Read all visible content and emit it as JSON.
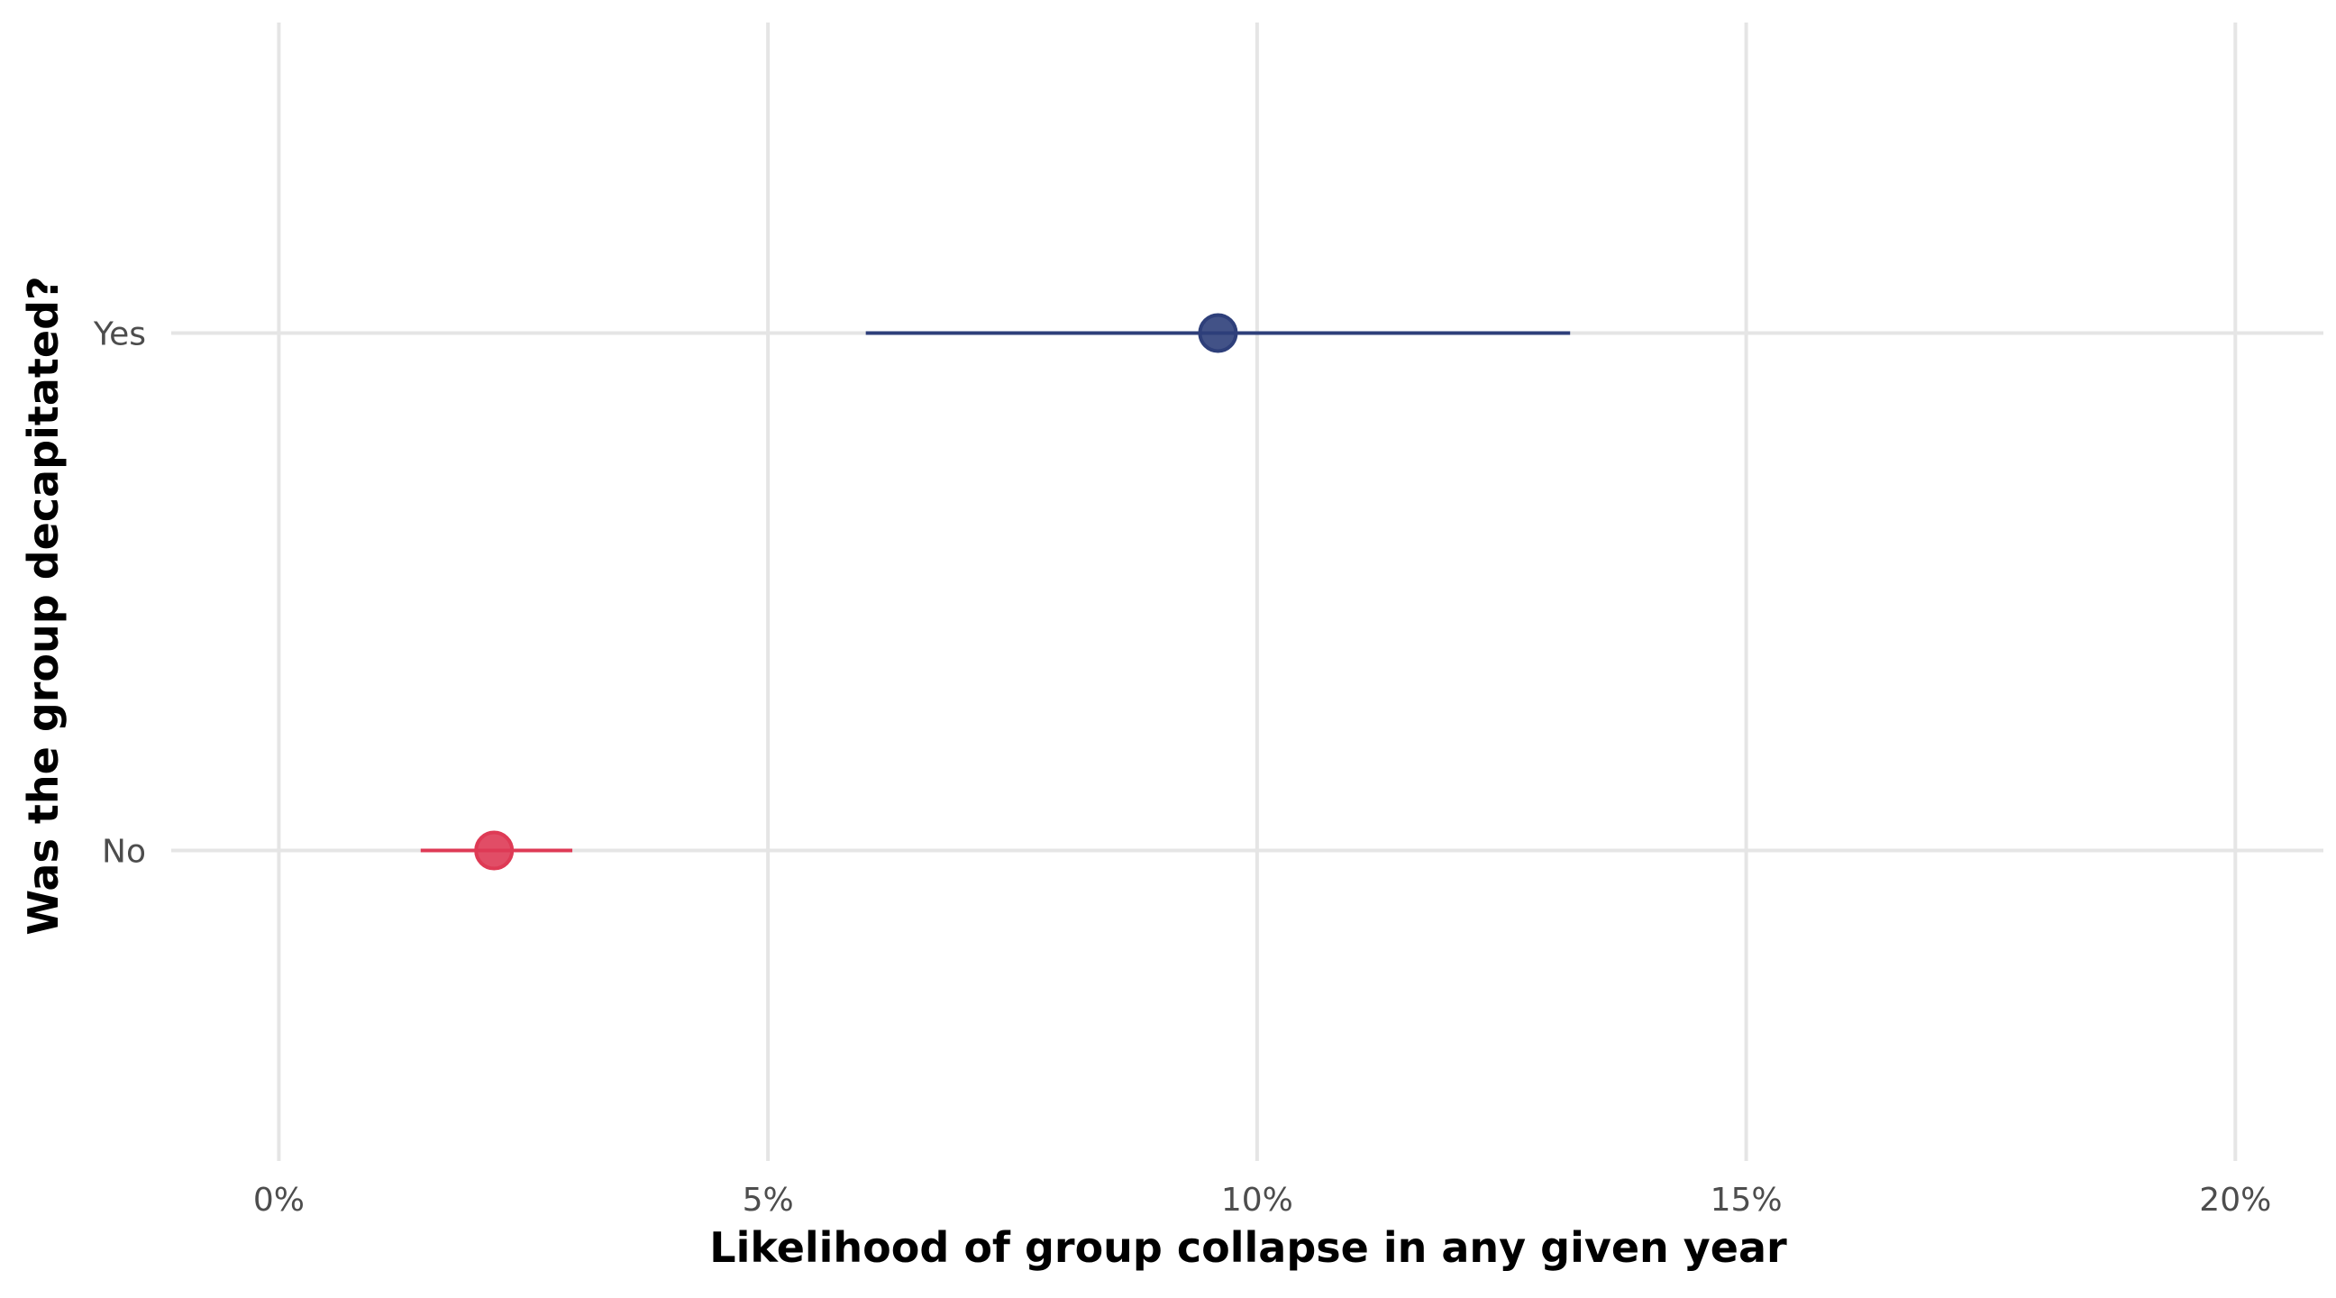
{
  "chart_data": {
    "type": "scatter",
    "title": "",
    "xlabel": "Likelihood of group collapse in any given year",
    "ylabel": "Was the group decapitated?",
    "xlim": [
      -0.011,
      0.209
    ],
    "x_ticks": [
      0,
      0.05,
      0.1,
      0.15,
      0.2
    ],
    "x_tick_labels": [
      "0%",
      "5%",
      "10%",
      "15%",
      "20%"
    ],
    "categories": [
      "No",
      "Yes"
    ],
    "points": [
      {
        "category": "Yes",
        "estimate": 0.096,
        "low": 0.06,
        "high": 0.132,
        "color": "#2e3f7a"
      },
      {
        "category": "No",
        "estimate": 0.022,
        "low": 0.0145,
        "high": 0.03,
        "color": "#de3a55"
      }
    ],
    "grid": true,
    "legend": "none"
  }
}
